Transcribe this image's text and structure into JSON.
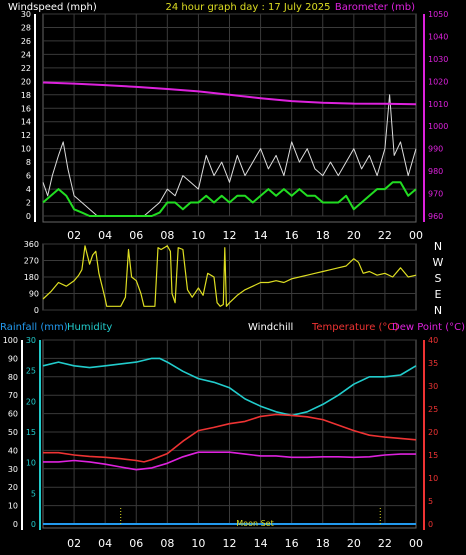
{
  "header": {
    "left_label": "Windspeed (mph)",
    "title": "24 hour graph day : 17 July 2025",
    "right_label": "Barometer (mb)"
  },
  "colors": {
    "background": "#000000",
    "grid": "#3a3a3a",
    "white": "#ffffff",
    "gust": "#dcdcdc",
    "wind": "#22dd22",
    "baro": "#dd22dd",
    "direction": "#dddd22",
    "humidity": "#22cccc",
    "temperature": "#ee3333",
    "dewpoint": "#dd22dd",
    "rain": "#2299ee",
    "title": "#dddd22",
    "moon": "#dddd22"
  },
  "time_ticks": [
    "02",
    "04",
    "06",
    "08",
    "10",
    "12",
    "14",
    "16",
    "18",
    "20",
    "22",
    "00"
  ],
  "direction_compass": [
    "N",
    "W",
    "S",
    "E",
    "N"
  ],
  "bottom_header": {
    "rain": "Rainfall (mm)",
    "humidity": "Humidity",
    "windchill": "Windchill",
    "temperature": "Temperature (°C)",
    "dewpoint": "Dew Point (°C)"
  },
  "moon_label": "Moon Set",
  "chart_data": [
    {
      "type": "line",
      "panel": "wind_barometer",
      "x_unit": "hour",
      "x_range": [
        0,
        24
      ],
      "left_axis": {
        "label": "Windspeed (mph)",
        "ylim": [
          0,
          30
        ],
        "ticks": [
          0,
          2,
          4,
          6,
          8,
          10,
          12,
          14,
          16,
          18,
          20,
          22,
          24,
          26,
          28,
          30
        ]
      },
      "right_axis": {
        "label": "Barometer (mb)",
        "ylim": [
          960,
          1050
        ],
        "ticks": [
          960,
          970,
          980,
          990,
          1000,
          1010,
          1020,
          1030,
          1040,
          1050
        ]
      },
      "series": [
        {
          "name": "Gust",
          "axis": "left",
          "x": [
            0,
            0.3,
            0.6,
            1,
            1.3,
            1.6,
            2,
            2.5,
            3,
            3.5,
            4,
            4.5,
            5,
            5.5,
            6,
            6.5,
            7,
            7.5,
            8,
            8.5,
            9,
            9.5,
            10,
            10.5,
            11,
            11.5,
            12,
            12.5,
            13,
            13.5,
            14,
            14.5,
            15,
            15.5,
            16,
            16.5,
            17,
            17.5,
            18,
            18.5,
            19,
            19.5,
            20,
            20.5,
            21,
            21.5,
            22,
            22.3,
            22.6,
            23,
            23.5,
            24
          ],
          "y": [
            5,
            3,
            6,
            9,
            11,
            7,
            3,
            2,
            1,
            0,
            0,
            0,
            0,
            0,
            0,
            0,
            1,
            2,
            4,
            3,
            6,
            5,
            4,
            9,
            6,
            8,
            5,
            9,
            6,
            8,
            10,
            7,
            9,
            6,
            11,
            8,
            10,
            7,
            6,
            8,
            6,
            8,
            10,
            7,
            9,
            6,
            10,
            18,
            9,
            11,
            6,
            10
          ]
        },
        {
          "name": "Wind",
          "axis": "left",
          "x": [
            0,
            0.5,
            1,
            1.5,
            2,
            2.5,
            3,
            3.5,
            4,
            4.5,
            5,
            5.5,
            6,
            6.5,
            7,
            7.5,
            8,
            8.5,
            9,
            9.5,
            10,
            10.5,
            11,
            11.5,
            12,
            12.5,
            13,
            13.5,
            14,
            14.5,
            15,
            15.5,
            16,
            16.5,
            17,
            17.5,
            18,
            18.5,
            19,
            19.5,
            20,
            20.5,
            21,
            21.5,
            22,
            22.5,
            23,
            23.5,
            24
          ],
          "y": [
            2,
            3,
            4,
            3,
            1,
            0.5,
            0,
            0,
            0,
            0,
            0,
            0,
            0,
            0,
            0,
            0.5,
            2,
            2,
            1,
            2,
            2,
            3,
            2,
            3,
            2,
            3,
            3,
            2,
            3,
            4,
            3,
            4,
            3,
            4,
            3,
            3,
            2,
            2,
            2,
            3,
            1,
            2,
            3,
            4,
            4,
            5,
            5,
            3,
            4
          ]
        },
        {
          "name": "Barometer",
          "axis": "right",
          "x": [
            0,
            2,
            4,
            6,
            8,
            10,
            12,
            14,
            16,
            18,
            20,
            22,
            24
          ],
          "y": [
            1019.5,
            1019,
            1018.3,
            1017.5,
            1016.6,
            1015.5,
            1014,
            1012.5,
            1011.2,
            1010.5,
            1010.1,
            1010,
            1009.8
          ]
        }
      ]
    },
    {
      "type": "line",
      "panel": "wind_direction",
      "x_unit": "hour",
      "x_range": [
        0,
        24
      ],
      "y_axis": {
        "label": "degrees",
        "ylim": [
          0,
          360
        ],
        "ticks": [
          0,
          90,
          180,
          270,
          360
        ]
      },
      "series": [
        {
          "name": "Wind direction",
          "x": [
            0,
            0.5,
            1,
            1.5,
            2,
            2.3,
            2.5,
            2.7,
            3,
            3.2,
            3.4,
            3.6,
            3.8,
            4,
            4.1,
            4.3,
            4.6,
            5,
            5.3,
            5.5,
            5.7,
            6,
            6.3,
            6.5,
            6.7,
            7,
            7.2,
            7.4,
            7.6,
            7.8,
            8,
            8.2,
            8.3,
            8.5,
            8.7,
            9,
            9.3,
            9.6,
            10,
            10.3,
            10.6,
            11,
            11.2,
            11.4,
            11.6,
            11.7,
            11.8,
            12,
            12.5,
            13,
            13.5,
            14,
            14.5,
            15,
            15.5,
            16,
            16.5,
            17,
            17.5,
            18,
            18.5,
            19,
            19.5,
            20,
            20.3,
            20.6,
            21,
            21.5,
            22,
            22.5,
            23,
            23.5,
            24
          ],
          "y": [
            60,
            100,
            150,
            130,
            160,
            190,
            220,
            350,
            250,
            300,
            320,
            200,
            130,
            60,
            20,
            20,
            20,
            20,
            70,
            330,
            180,
            160,
            90,
            20,
            20,
            20,
            20,
            340,
            330,
            340,
            350,
            320,
            90,
            40,
            340,
            330,
            110,
            70,
            120,
            80,
            200,
            180,
            40,
            20,
            30,
            340,
            20,
            40,
            80,
            110,
            130,
            150,
            150,
            160,
            150,
            170,
            180,
            190,
            200,
            210,
            220,
            230,
            240,
            280,
            260,
            200,
            210,
            190,
            200,
            180,
            230,
            180,
            190
          ]
        }
      ]
    },
    {
      "type": "line",
      "panel": "temperature_humidity",
      "x_unit": "hour",
      "x_range": [
        0,
        24
      ],
      "left_axis": {
        "label": "Humidity",
        "ylim": [
          0,
          100
        ],
        "ticks": [
          0,
          10,
          20,
          30,
          40,
          50,
          60,
          70,
          80,
          90,
          100
        ]
      },
      "rain_axis": {
        "label": "Rainfall (mm)",
        "ylim": [
          0,
          30
        ],
        "ticks": [
          0,
          5,
          10,
          15,
          20,
          25,
          30
        ]
      },
      "right_axis": {
        "label": "Temperature (°C)",
        "ylim": [
          0,
          40
        ],
        "ticks": [
          0,
          5,
          10,
          15,
          20,
          25,
          30,
          35,
          40
        ]
      },
      "series": [
        {
          "name": "Humidity",
          "axis": "left",
          "x": [
            0,
            1,
            2,
            3,
            4,
            5,
            6,
            7,
            7.5,
            8,
            9,
            10,
            11,
            12,
            13,
            14,
            15,
            16,
            17,
            18,
            19,
            20,
            21,
            22,
            23,
            24
          ],
          "y": [
            86,
            88,
            86,
            85,
            86,
            87,
            88,
            90,
            90,
            88,
            83,
            79,
            77,
            74,
            68,
            64,
            61,
            59,
            61,
            65,
            70,
            76,
            80,
            80,
            81,
            86
          ]
        },
        {
          "name": "Temperature",
          "axis": "right",
          "x": [
            0,
            1,
            2,
            3,
            4,
            5,
            6,
            6.5,
            7,
            8,
            9,
            10,
            11,
            12,
            13,
            14,
            15,
            16,
            17,
            18,
            19,
            20,
            21,
            22,
            23,
            24
          ],
          "y": [
            15.5,
            15.5,
            15,
            14.7,
            14.5,
            14.2,
            13.8,
            13.5,
            14,
            15.3,
            18,
            20.3,
            21,
            21.8,
            22.3,
            23.4,
            23.8,
            23.6,
            23.3,
            22.7,
            21.5,
            20.3,
            19.3,
            18.9,
            18.6,
            18.3
          ]
        },
        {
          "name": "Dew Point",
          "axis": "right",
          "x": [
            0,
            1,
            2,
            3,
            4,
            5,
            6,
            7,
            8,
            9,
            10,
            11,
            12,
            13,
            14,
            15,
            16,
            17,
            18,
            19,
            20,
            21,
            22,
            23,
            24
          ],
          "y": [
            13.5,
            13.5,
            13.8,
            13.5,
            13,
            12.4,
            11.8,
            12.2,
            13.2,
            14.6,
            15.6,
            15.6,
            15.6,
            15.2,
            14.8,
            14.8,
            14.5,
            14.5,
            14.6,
            14.6,
            14.5,
            14.6,
            15,
            15.2,
            15.2
          ]
        },
        {
          "name": "Windchill",
          "axis": "right",
          "x": [],
          "y": []
        },
        {
          "name": "Rainfall",
          "axis": "rain",
          "x": [
            0,
            24
          ],
          "y": [
            0,
            0
          ]
        }
      ],
      "annotations": [
        {
          "text": "Moon Set",
          "x": 21.7
        }
      ]
    }
  ]
}
